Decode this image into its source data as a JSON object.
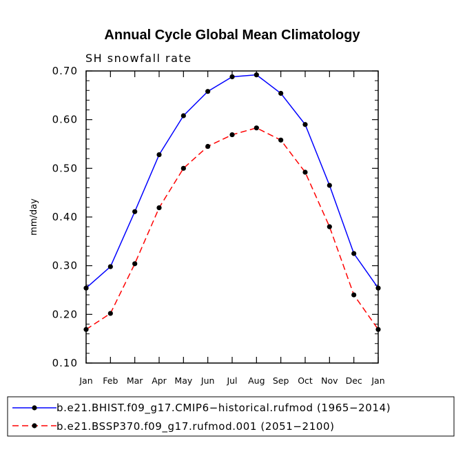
{
  "chart_data": {
    "type": "line",
    "title": "Annual Cycle Global Mean Climatology",
    "subtitle": "SH snowfall rate",
    "xlabel": "",
    "ylabel": "mm/day",
    "categories": [
      "Jan",
      "Feb",
      "Mar",
      "Apr",
      "May",
      "Jun",
      "Jul",
      "Aug",
      "Sep",
      "Oct",
      "Nov",
      "Dec",
      "Jan"
    ],
    "ylim": [
      0.1,
      0.7
    ],
    "yticks": [
      "0.10",
      "0.20",
      "0.30",
      "0.40",
      "0.50",
      "0.60",
      "0.70"
    ],
    "ytick_values": [
      0.1,
      0.2,
      0.3,
      0.4,
      0.5,
      0.6,
      0.7
    ],
    "grid": false,
    "legend_position": "bottom",
    "series": [
      {
        "name": "b.e21.BHIST.f09_g17.CMIP6-historical.rufmod (1965-2014)",
        "color": "#0000ff",
        "dash": "solid",
        "values": [
          0.254,
          0.298,
          0.411,
          0.528,
          0.608,
          0.658,
          0.688,
          0.692,
          0.654,
          0.59,
          0.465,
          0.325,
          0.254
        ]
      },
      {
        "name": "b.e21.BSSP370.f09_g17.rufmod.001 (2051-2100)",
        "color": "#ff0000",
        "dash": "dashed",
        "values": [
          0.169,
          0.202,
          0.304,
          0.419,
          0.5,
          0.545,
          0.569,
          0.583,
          0.558,
          0.492,
          0.38,
          0.24,
          0.169
        ]
      }
    ]
  },
  "legend": {
    "entries": [
      "b.e21.BHIST.f09_g17.CMIP6−historical.rufmod (1965−2014)",
      "b.e21.BSSP370.f09_g17.rufmod.001 (2051−2100)"
    ]
  }
}
